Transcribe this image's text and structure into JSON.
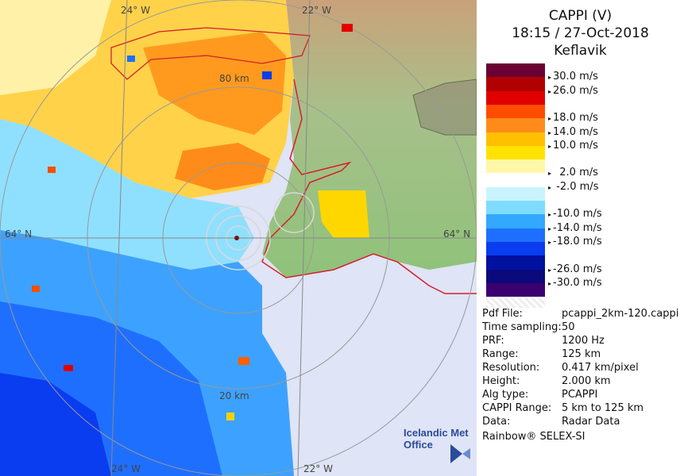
{
  "header": {
    "line1": "CAPPI (V)",
    "line2": "18:15 / 27-Oct-2018",
    "line3": "Keflavik"
  },
  "map": {
    "lat_left": "64° N",
    "lat_right": "64° N",
    "lon_top_left": "24° W",
    "lon_top_right": "22° W",
    "lon_bottom_left": "24° W",
    "lon_bottom_right": "22° W",
    "range_label_80": "80 km",
    "range_label_20": "20 km"
  },
  "legend": {
    "colors": [
      "#6b0033",
      "#b00000",
      "#e00000",
      "#ff4d00",
      "#ff8c1a",
      "#ffc000",
      "#ffe200",
      "#fff7a8",
      "#ffffff",
      "#c8f4ff",
      "#7fdcff",
      "#33a8ff",
      "#1f6fff",
      "#0a3cf0",
      "#00109f",
      "#0a0a7a",
      "#3a0070"
    ],
    "labels": [
      {
        "text": "30.0 m/s",
        "row": 1
      },
      {
        "text": "26.0 m/s",
        "row": 2
      },
      {
        "text": "18.0 m/s",
        "row": 4
      },
      {
        "text": "14.0 m/s",
        "row": 5
      },
      {
        "text": "10.0 m/s",
        "row": 6
      },
      {
        "text": "  2.0 m/s",
        "row": 8
      },
      {
        "text": " -2.0 m/s",
        "row": 9
      },
      {
        "text": "-10.0 m/s",
        "row": 11
      },
      {
        "text": "-14.0 m/s",
        "row": 12
      },
      {
        "text": "-18.0 m/s",
        "row": 13
      },
      {
        "text": "-26.0 m/s",
        "row": 15
      },
      {
        "text": "-30.0 m/s",
        "row": 16
      }
    ]
  },
  "info": [
    {
      "key": "Pdf File:",
      "value": "pcappi_2km-120.cappi"
    },
    {
      "key": "Time sampling:",
      "value": "50"
    },
    {
      "key": "PRF:",
      "value": "1200 Hz"
    },
    {
      "key": "Range:",
      "value": "125 km"
    },
    {
      "key": "Resolution:",
      "value": "0.417 km/pixel"
    },
    {
      "key": "Height:",
      "value": "2.000 km"
    },
    {
      "key": "Alg type:",
      "value": "PCAPPI"
    },
    {
      "key": "CAPPI Range:",
      "value": "5 km to 125 km"
    },
    {
      "key": "Data:",
      "value": "Radar Data"
    }
  ],
  "footer": {
    "rainbow": "Rainbow® SELEX-SI",
    "logo_line1": "Icelandic Met",
    "logo_line2": "Office"
  }
}
